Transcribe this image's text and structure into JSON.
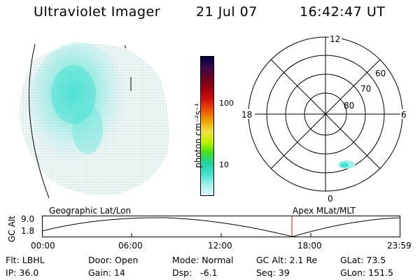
{
  "header": {
    "instrument": "Ultraviolet Imager",
    "date": "21 Jul 07",
    "time": "16:42:47 UT"
  },
  "colorbar": {
    "unit_label": "photon cm⁻²s⁻¹",
    "ticks": [
      "100",
      "10"
    ],
    "colors": [
      "#00003c",
      "#3a0a4a",
      "#6a0020",
      "#a00010",
      "#d01010",
      "#f05000",
      "#f0a000",
      "#f0e040",
      "#c0f000",
      "#40e020",
      "#20d0a0",
      "#40e0d0",
      "#a0f0ea",
      "#e0fafa"
    ]
  },
  "polar": {
    "mlt_labels": [
      "12",
      "18",
      "6",
      "0"
    ],
    "lat_labels": [
      "60",
      "70",
      "80"
    ]
  },
  "orbit": {
    "y_axis_label": "GC Alt",
    "y_ticks": [
      "9.0",
      "1.8"
    ],
    "left_title": "Geographic Lat/Lon",
    "right_title": "Apex MLat/MLT",
    "x_ticks": [
      "00:00",
      "06:00",
      "12:00",
      "18:00",
      "23:59"
    ],
    "marker_color": "#d01010"
  },
  "info": {
    "filter": "Flt: LBHL",
    "door": "Door: Open",
    "mode": "Mode: Normal",
    "gc_alt": "GC Alt: 2.1 Re",
    "glat": "GLat: 73.5",
    "ip": "IP: 36.0",
    "gain": "Gain: 14",
    "dsp": "Dsp:   -6.1",
    "seq": "Seq: 39",
    "glon": "GLon: 151.5"
  }
}
